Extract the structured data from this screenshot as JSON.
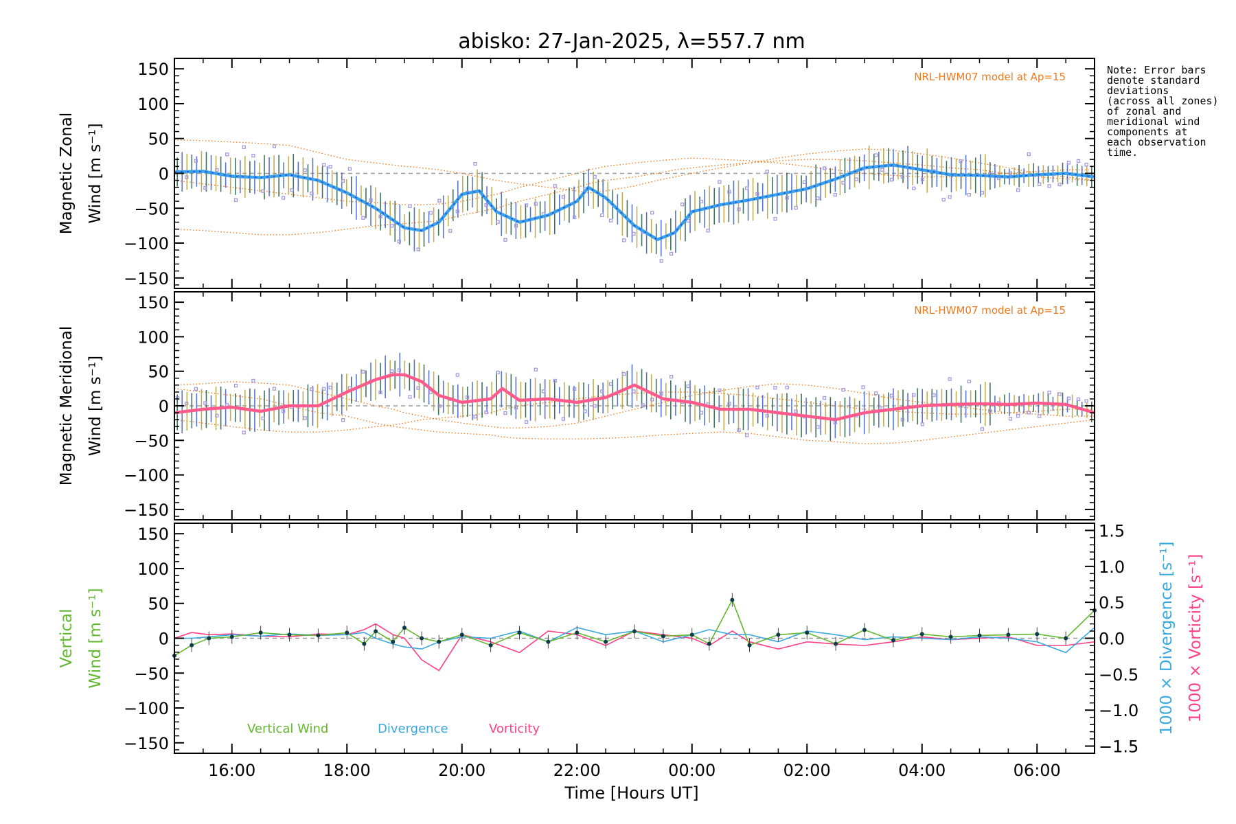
{
  "title": "abisko: 27-Jan-2025, λ=557.7 nm",
  "note": [
    "Note: Error bars",
    "denote standard",
    "deviations",
    "(across all zones)",
    "of zonal and",
    "meridional wind",
    "components at",
    "each observation",
    "time."
  ],
  "colors": {
    "zonal": "#3aa0ea",
    "zonal_dark": "#1a4fd8",
    "meridional": "#ff5a8c",
    "model": "#f07a1e",
    "vertical": "#62b82e",
    "divergence": "#3aa8e0",
    "vorticity": "#ff3f86",
    "points": "#0e3b4a",
    "scatter": "#a59ae0",
    "errbar_a": "#1f5a40",
    "errbar_b": "#3c5dc8",
    "errbar_c": "#b4a03c",
    "zero_line": "#999999"
  },
  "chart_data": [
    {
      "panel": "zonal",
      "type": "line",
      "ylabel_line1": "Magnetic Zonal",
      "ylabel_line2": "Wind [m s⁻¹]",
      "model_label": "NRL-HWM07 model at Ap=15",
      "ylim": [
        -165,
        165
      ],
      "yticks": [
        "150",
        "100",
        "50",
        "0",
        "−50",
        "−100",
        "−150"
      ],
      "x": [
        15.0,
        15.5,
        16.0,
        16.5,
        17.0,
        17.5,
        18.0,
        18.5,
        19.0,
        19.3,
        19.6,
        20.0,
        20.3,
        20.6,
        21.0,
        21.5,
        22.0,
        22.2,
        22.5,
        23.0,
        23.4,
        23.7,
        24.0,
        24.5,
        25.0,
        25.5,
        26.0,
        26.5,
        27.0,
        27.5,
        28.0,
        28.5,
        29.0,
        29.5,
        30.0,
        30.5,
        31.0
      ],
      "series": [
        {
          "role": "mean",
          "values": [
            2,
            3,
            -4,
            -6,
            -2,
            -10,
            -28,
            -50,
            -78,
            -82,
            -70,
            -30,
            -25,
            -55,
            -70,
            -60,
            -40,
            -20,
            -35,
            -75,
            -95,
            -85,
            -55,
            -45,
            -38,
            -30,
            -22,
            -8,
            8,
            12,
            5,
            -2,
            -3,
            -5,
            -2,
            0,
            -5
          ]
        },
        {
          "role": "model",
          "values": [
            48,
            47,
            45,
            43,
            40,
            30,
            20,
            15,
            10,
            8,
            5,
            0,
            -5,
            -10,
            -15,
            -20,
            -25,
            -28,
            -25,
            -18,
            -10,
            -5,
            0,
            8,
            15,
            22,
            28,
            32,
            35,
            33,
            28,
            22,
            15,
            8,
            0,
            -5,
            -10
          ]
        },
        {
          "role": "model",
          "values": [
            -80,
            -82,
            -85,
            -88,
            -88,
            -85,
            -80,
            -75,
            -72,
            -70,
            -68,
            -60,
            -55,
            -50,
            -40,
            -30,
            -20,
            -15,
            -10,
            -5,
            0,
            5,
            8,
            12,
            15,
            18,
            20,
            20,
            18,
            15,
            12,
            8,
            5,
            0,
            -5,
            -8,
            -10
          ]
        },
        {
          "role": "model",
          "values": [
            -10,
            -15,
            -20,
            -25,
            -30,
            -35,
            -40,
            -42,
            -45,
            -45,
            -44,
            -40,
            -35,
            -30,
            -20,
            -10,
            0,
            5,
            10,
            15,
            18,
            20,
            22,
            20,
            18,
            15,
            10,
            5,
            0,
            -3,
            -5,
            -5,
            -3,
            0,
            3,
            5,
            5
          ]
        }
      ]
    },
    {
      "panel": "meridional",
      "type": "line",
      "ylabel_line1": "Magnetic Meridional",
      "ylabel_line2": "Wind [m s⁻¹]",
      "model_label": "NRL-HWM07 model at Ap=15",
      "ylim": [
        -165,
        165
      ],
      "yticks": [
        "150",
        "100",
        "50",
        "0",
        "−50",
        "−100",
        "−150"
      ],
      "x": [
        15.0,
        15.5,
        16.0,
        16.5,
        17.0,
        17.5,
        18.0,
        18.5,
        18.8,
        19.0,
        19.3,
        19.6,
        20.0,
        20.5,
        20.7,
        21.0,
        21.5,
        22.0,
        22.5,
        23.0,
        23.5,
        24.0,
        24.5,
        25.0,
        25.5,
        26.0,
        26.5,
        27.0,
        27.5,
        28.0,
        28.5,
        29.0,
        29.5,
        30.0,
        30.5,
        31.0
      ],
      "series": [
        {
          "role": "mean",
          "values": [
            -10,
            -5,
            -2,
            -8,
            0,
            0,
            20,
            38,
            45,
            45,
            35,
            15,
            5,
            10,
            25,
            8,
            10,
            5,
            12,
            30,
            10,
            5,
            -5,
            -5,
            -10,
            -15,
            -20,
            -10,
            -5,
            0,
            2,
            3,
            2,
            4,
            2,
            -10
          ]
        },
        {
          "role": "model",
          "values": [
            30,
            32,
            35,
            33,
            30,
            20,
            10,
            0,
            -5,
            -10,
            -15,
            -20,
            -25,
            -30,
            -32,
            -32,
            -30,
            -25,
            -15,
            -5,
            5,
            15,
            22,
            28,
            32,
            30,
            25,
            18,
            10,
            5,
            0,
            -5,
            -10,
            -12,
            -15,
            -15
          ]
        },
        {
          "role": "model",
          "values": [
            -20,
            -25,
            -30,
            -35,
            -38,
            -38,
            -35,
            -30,
            -28,
            -25,
            -20,
            -18,
            -15,
            -10,
            -5,
            0,
            5,
            10,
            15,
            18,
            20,
            20,
            18,
            15,
            10,
            5,
            0,
            -5,
            -8,
            -10,
            -12,
            -12,
            -10,
            -8,
            -5,
            -5
          ]
        },
        {
          "role": "model",
          "values": [
            25,
            20,
            15,
            10,
            0,
            -10,
            -15,
            -25,
            -30,
            -32,
            -35,
            -38,
            -40,
            -42,
            -45,
            -47,
            -48,
            -48,
            -47,
            -45,
            -42,
            -40,
            -38,
            -40,
            -45,
            -50,
            -52,
            -55,
            -54,
            -50,
            -45,
            -40,
            -35,
            -30,
            -25,
            -20
          ]
        }
      ]
    },
    {
      "panel": "vertical",
      "type": "line",
      "ylabel_line1": "Vertical",
      "ylabel_line2": "Wind [m s⁻¹]",
      "ylim": [
        -165,
        165
      ],
      "yticks": [
        "150",
        "100",
        "50",
        "0",
        "−50",
        "−100",
        "−150"
      ],
      "y2lim": [
        -1.6,
        1.6
      ],
      "y2ticks": [
        "1.5",
        "1.0",
        "0.5",
        "0.0",
        "−0.5",
        "−1.0",
        "−1.5"
      ],
      "y2label_divergence": "1000 × Divergence [s⁻¹]",
      "y2label_vorticity": "1000 × Vorticity [s⁻¹]",
      "legend": [
        "Vertical Wind",
        "Divergence",
        "Vorticity"
      ],
      "x": [
        15.0,
        15.3,
        15.6,
        16.0,
        16.5,
        17.0,
        17.5,
        18.0,
        18.3,
        18.5,
        18.8,
        19.0,
        19.3,
        19.6,
        20.0,
        20.5,
        21.0,
        21.5,
        22.0,
        22.5,
        23.0,
        23.5,
        24.0,
        24.3,
        24.7,
        25.0,
        25.5,
        26.0,
        26.5,
        27.0,
        27.5,
        28.0,
        28.5,
        29.0,
        29.5,
        30.0,
        30.5,
        31.0
      ],
      "series": [
        {
          "name": "Vertical Wind",
          "values": [
            -25,
            -10,
            0,
            2,
            8,
            5,
            4,
            8,
            -8,
            10,
            -5,
            15,
            0,
            -5,
            5,
            -10,
            8,
            -5,
            8,
            -5,
            10,
            3,
            5,
            -8,
            55,
            -10,
            5,
            8,
            -8,
            12,
            -3,
            6,
            2,
            4,
            5,
            6,
            0,
            40
          ]
        },
        {
          "name": "Divergence",
          "values": [
            0.0,
            0.0,
            0.02,
            0.05,
            0.03,
            0.06,
            0.04,
            0.05,
            0.08,
            0.0,
            -0.08,
            -0.12,
            -0.15,
            -0.05,
            0.02,
            0.0,
            0.1,
            -0.05,
            0.15,
            0.05,
            0.1,
            -0.05,
            0.05,
            0.12,
            0.05,
            0.05,
            -0.05,
            0.1,
            0.05,
            -0.02,
            0.02,
            0.0,
            -0.02,
            0.02,
            0.0,
            -0.05,
            -0.2,
            0.15
          ]
        },
        {
          "name": "Vorticity",
          "values": [
            0.0,
            0.08,
            0.05,
            0.06,
            0.03,
            0.02,
            0.06,
            0.05,
            0.12,
            0.2,
            0.05,
            0.0,
            -0.3,
            -0.45,
            0.05,
            -0.05,
            -0.2,
            0.1,
            0.05,
            -0.1,
            0.1,
            0.05,
            0.0,
            -0.1,
            0.1,
            -0.05,
            -0.15,
            -0.05,
            -0.08,
            -0.1,
            -0.05,
            0.02,
            -0.02,
            0.0,
            0.02,
            -0.1,
            -0.1,
            -0.05
          ]
        }
      ]
    }
  ],
  "x_axis": {
    "xlim": [
      15.0,
      31.0
    ],
    "label": "Time [Hours UT]",
    "tick_values": [
      16,
      18,
      20,
      22,
      24,
      26,
      28,
      30
    ],
    "tick_labels": [
      "16:00",
      "18:00",
      "20:00",
      "22:00",
      "00:00",
      "02:00",
      "04:00",
      "06:00"
    ]
  }
}
